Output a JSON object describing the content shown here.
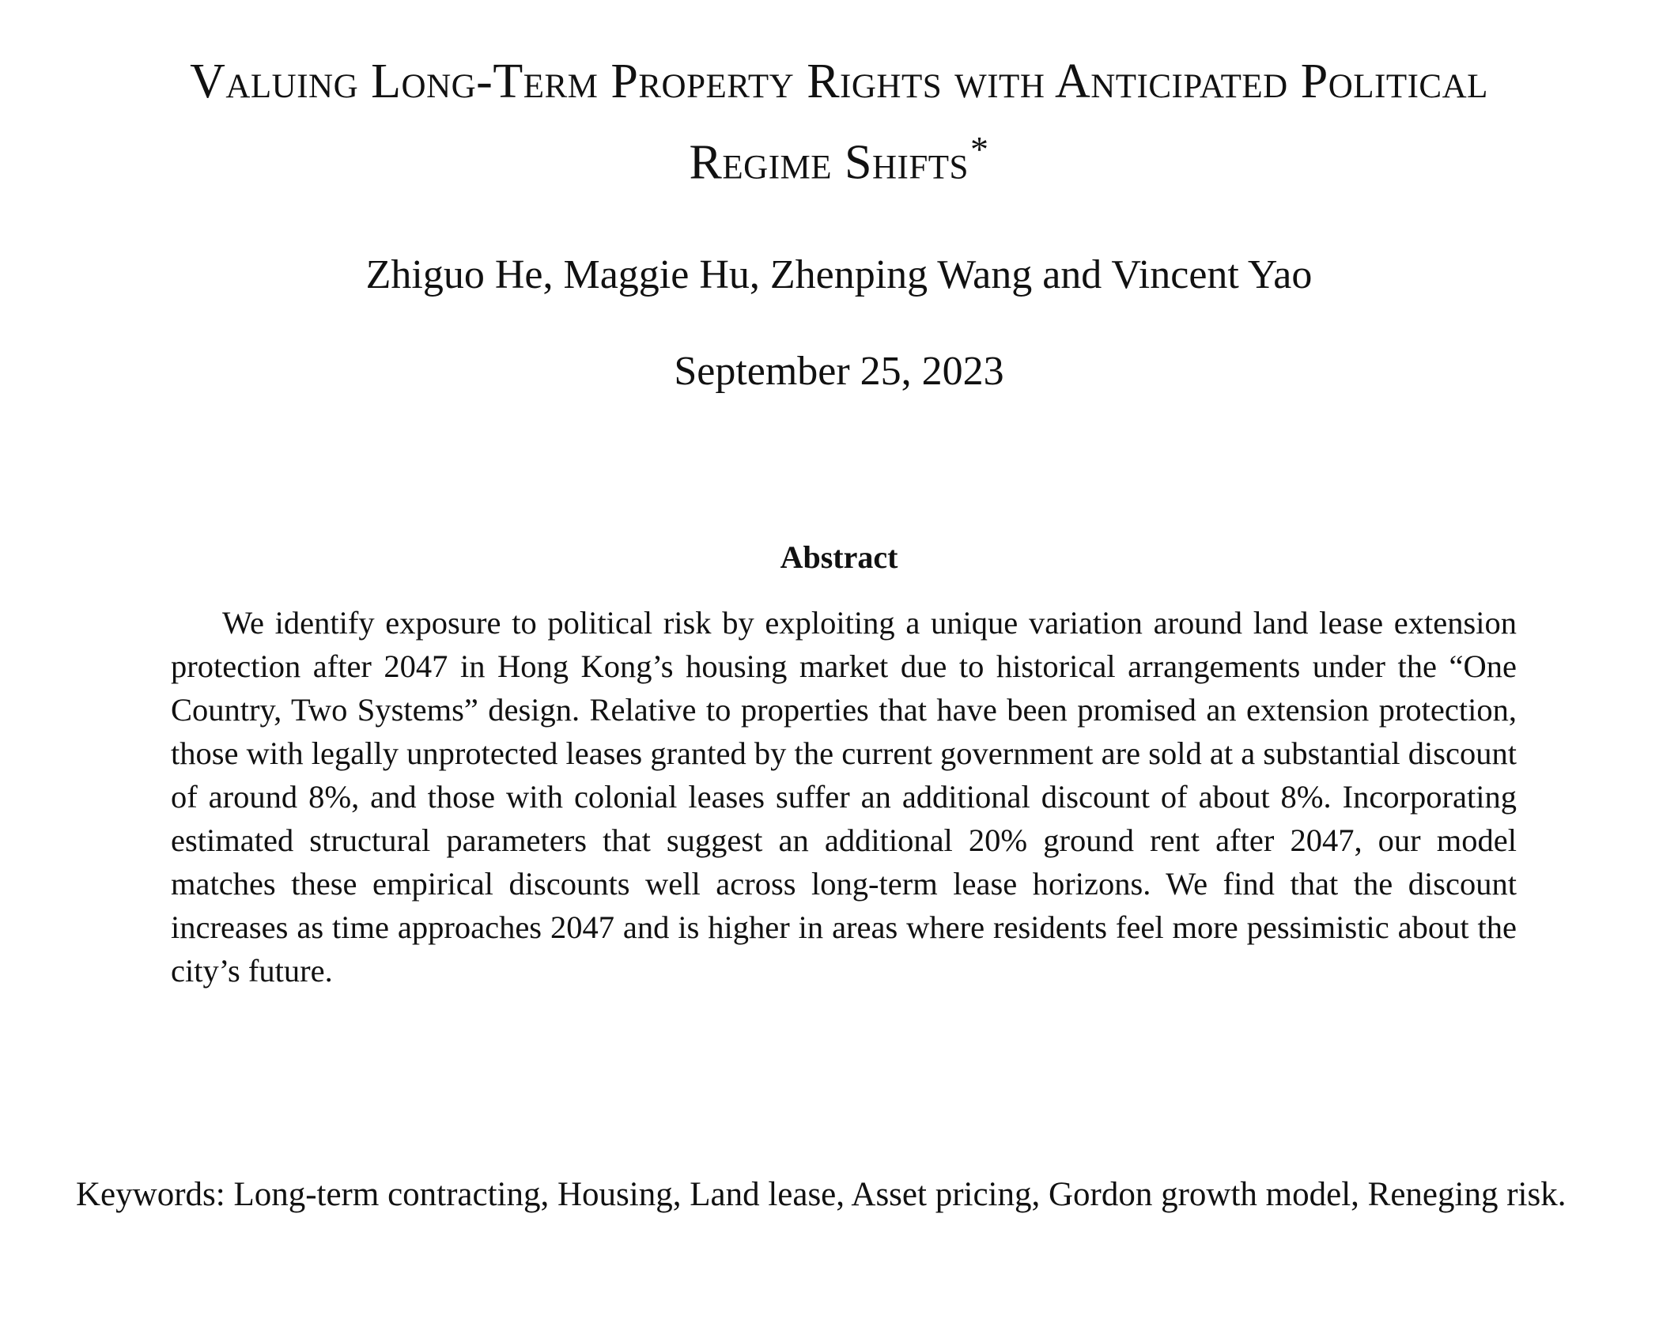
{
  "paper": {
    "title": "Valuing Long-Term Property Rights with Anticipated Political Regime Shifts",
    "title_footnote_mark": "*",
    "authors": "Zhiguo He, Maggie Hu, Zhenping Wang and Vincent Yao",
    "date": "September 25, 2023"
  },
  "abstract": {
    "heading": "Abstract",
    "body": "We identify exposure to political risk by exploiting a unique variation around land lease extension protection after 2047 in Hong Kong’s housing market due to historical arrangements under the “One Country, Two Systems” design.  Relative to properties that have been promised an extension protection, those with legally unprotected leases granted by the current government are sold at a substantial discount of around 8%, and those with colonial leases suffer an additional discount of about 8%. Incorporating estimated structural parameters that suggest an additional 20% ground rent after 2047, our model matches these empirical discounts well across long-term lease horizons.  We find that the discount increases as time approaches 2047 and is higher in areas where residents feel more pessimistic about the city’s future."
  },
  "keywords": {
    "text": "Keywords: Long-term contracting, Housing, Land lease, Asset pricing, Gordon growth model, Reneging risk."
  }
}
